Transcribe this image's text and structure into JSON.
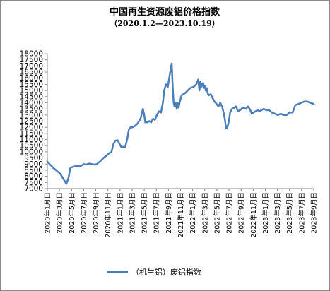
{
  "chart_data": {
    "type": "line",
    "title": "中国再生资源废铝价格指数",
    "subtitle": "（2020.1.2—2023.10.19）",
    "ylim": [
      7000,
      18000
    ],
    "y_ticks": [
      7000,
      7500,
      8000,
      8500,
      9000,
      9500,
      10000,
      10500,
      11000,
      11500,
      12000,
      12500,
      13000,
      13500,
      14000,
      14500,
      15000,
      15500,
      16000,
      16500,
      17000,
      17500,
      18000
    ],
    "x_tick_labels": [
      "2020年1月日",
      "2020年3月日",
      "2020年5月日",
      "2020年7月日",
      "2020年9月日",
      "2020年11月日",
      "2021年1月日",
      "2021年3月日",
      "2021年5月日",
      "2021年7月日",
      "2021年9月日",
      "2021年11月日",
      "2022年1月日",
      "2022年3月日",
      "2022年5月日",
      "2022年7月日",
      "2022年9月日",
      "2022年11月日",
      "2023年1月日",
      "2023年3月日",
      "2023年5月日",
      "2023年7月日",
      "2023年9月日"
    ],
    "grid": false,
    "legend_position": "bottom",
    "series": [
      {
        "name": "（机生铝）废铝指数",
        "color": "#4a7ebb",
        "x": [
          "2020-01-02",
          "2020-02-01",
          "2020-03-10",
          "2020-04-05",
          "2020-04-10",
          "2020-04-20",
          "2020-05-01",
          "2020-05-20",
          "2020-06-10",
          "2020-06-20",
          "2020-07-10",
          "2020-07-20",
          "2020-08-10",
          "2020-08-20",
          "2020-09-05",
          "2020-09-15",
          "2020-10-01",
          "2020-10-20",
          "2020-11-05",
          "2020-11-20",
          "2020-12-01",
          "2020-12-10",
          "2020-12-20",
          "2021-01-01",
          "2021-01-10",
          "2021-01-20",
          "2021-02-10",
          "2021-02-20",
          "2021-03-01",
          "2021-03-10",
          "2021-03-20",
          "2021-04-01",
          "2021-04-15",
          "2021-05-01",
          "2021-05-10",
          "2021-05-13",
          "2021-05-20",
          "2021-05-25",
          "2021-06-05",
          "2021-06-15",
          "2021-06-25",
          "2021-07-05",
          "2021-07-15",
          "2021-07-25",
          "2021-08-05",
          "2021-08-15",
          "2021-08-25",
          "2021-09-01",
          "2021-09-10",
          "2021-09-20",
          "2021-09-30",
          "2021-10-10",
          "2021-10-15",
          "2021-10-20",
          "2021-10-25",
          "2021-11-01",
          "2021-11-05",
          "2021-11-10",
          "2021-11-15",
          "2021-11-20",
          "2021-11-30",
          "2021-12-10",
          "2021-12-20",
          "2022-01-01",
          "2022-01-15",
          "2022-02-01",
          "2022-02-15",
          "2022-02-25",
          "2022-03-03",
          "2022-03-08",
          "2022-03-12",
          "2022-03-15",
          "2022-03-20",
          "2022-03-25",
          "2022-04-01",
          "2022-04-05",
          "2022-04-10",
          "2022-04-15",
          "2022-04-20",
          "2022-05-01",
          "2022-05-10",
          "2022-05-20",
          "2022-06-01",
          "2022-06-10",
          "2022-06-20",
          "2022-07-01",
          "2022-07-10",
          "2022-07-15",
          "2022-07-20",
          "2022-07-25",
          "2022-08-01",
          "2022-08-10",
          "2022-08-20",
          "2022-09-01",
          "2022-09-10",
          "2022-09-20",
          "2022-10-01",
          "2022-10-15",
          "2022-11-01",
          "2022-11-10",
          "2022-11-20",
          "2022-12-01",
          "2022-12-10",
          "2022-12-20",
          "2023-01-01",
          "2023-01-10",
          "2023-01-20",
          "2023-02-01",
          "2023-02-15",
          "2023-03-01",
          "2023-03-15",
          "2023-04-01",
          "2023-04-15",
          "2023-05-01",
          "2023-05-15",
          "2023-06-01",
          "2023-06-15",
          "2023-07-01",
          "2023-07-15",
          "2023-08-01",
          "2023-08-15",
          "2023-09-01",
          "2023-09-15",
          "2023-10-01",
          "2023-10-19"
        ],
        "values": [
          9200,
          8700,
          8200,
          7500,
          7400,
          7800,
          8700,
          8800,
          8850,
          8800,
          9000,
          8950,
          9050,
          9000,
          8950,
          9000,
          9200,
          9500,
          9700,
          9900,
          10000,
          10600,
          10900,
          10950,
          10700,
          10400,
          10400,
          11000,
          11800,
          12000,
          12000,
          12100,
          12300,
          12700,
          13300,
          13500,
          13000,
          12400,
          12400,
          12500,
          12400,
          12700,
          12600,
          13000,
          13300,
          13200,
          14000,
          15000,
          15500,
          15300,
          16300,
          17200,
          15400,
          14000,
          13700,
          14000,
          13500,
          14000,
          13600,
          14000,
          14600,
          14700,
          14800,
          15000,
          15200,
          15300,
          15500,
          15900,
          15000,
          15700,
          15300,
          15400,
          15600,
          15200,
          15400,
          15000,
          15200,
          14800,
          14600,
          14700,
          14400,
          14100,
          13900,
          13700,
          14000,
          13600,
          13000,
          12500,
          11900,
          11900,
          12300,
          13200,
          13500,
          13600,
          13700,
          13300,
          13400,
          13600,
          13500,
          13700,
          13500,
          13100,
          13200,
          13300,
          13400,
          13300,
          13400,
          13500,
          13400,
          13400,
          13200,
          13100,
          13000,
          13100,
          13000,
          13000,
          13200,
          13200,
          13800,
          13900,
          14000,
          14100,
          14100,
          14000,
          13900
        ]
      }
    ]
  }
}
